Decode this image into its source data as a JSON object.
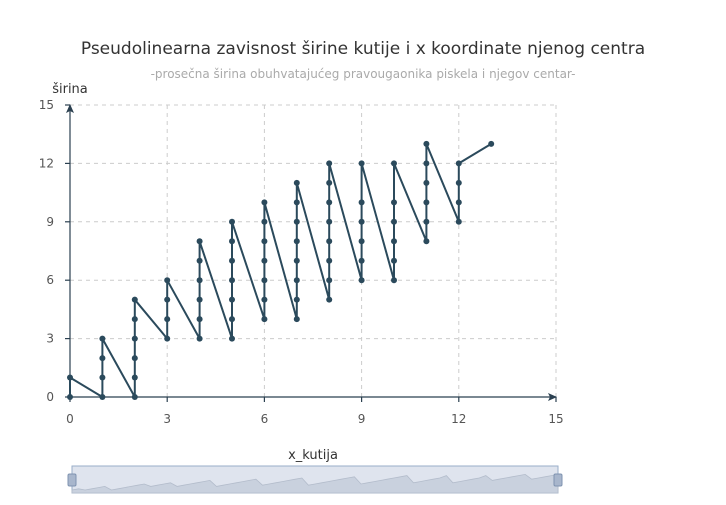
{
  "chart_data": {
    "type": "line",
    "title": "Pseudolinearna zavisnost širine kutije i x koordinate njenog centra",
    "subtitle": "-prosečna širina obuhvatajućeg pravougaonika piskela i njegov centar-",
    "xlabel": "x_kutija",
    "ylabel": "širina",
    "xlim": [
      0,
      15
    ],
    "ylim": [
      0,
      15
    ],
    "xticks": [
      "0",
      "3",
      "6",
      "9",
      "12",
      "15"
    ],
    "yticks": [
      "0",
      "3",
      "6",
      "9",
      "12",
      "15"
    ],
    "grid": true,
    "data_zoom": true,
    "colors": {
      "series": "#2b4a5c",
      "grid": "#cccccc",
      "axis": "#2b4050",
      "zoom_fill": "#dfe4ee",
      "zoom_border": "#9aaec8"
    },
    "series": [
      {
        "points": [
          [
            0,
            0
          ],
          [
            0,
            1
          ],
          [
            1,
            0
          ],
          [
            1,
            1
          ],
          [
            1,
            2
          ],
          [
            1,
            3
          ],
          [
            2,
            0
          ],
          [
            2,
            1
          ],
          [
            2,
            2
          ],
          [
            2,
            3
          ],
          [
            2,
            4
          ],
          [
            2,
            5
          ],
          [
            3,
            3
          ],
          [
            3,
            4
          ],
          [
            3,
            5
          ],
          [
            3,
            6
          ],
          [
            4,
            3
          ],
          [
            4,
            4
          ],
          [
            4,
            5
          ],
          [
            4,
            6
          ],
          [
            4,
            7
          ],
          [
            4,
            8
          ],
          [
            5,
            3
          ],
          [
            5,
            4
          ],
          [
            5,
            5
          ],
          [
            5,
            6
          ],
          [
            5,
            7
          ],
          [
            5,
            8
          ],
          [
            5,
            9
          ],
          [
            6,
            4
          ],
          [
            6,
            5
          ],
          [
            6,
            6
          ],
          [
            6,
            7
          ],
          [
            6,
            8
          ],
          [
            6,
            9
          ],
          [
            6,
            10
          ],
          [
            7,
            4
          ],
          [
            7,
            5
          ],
          [
            7,
            6
          ],
          [
            7,
            7
          ],
          [
            7,
            8
          ],
          [
            7,
            9
          ],
          [
            7,
            10
          ],
          [
            7,
            11
          ],
          [
            8,
            5
          ],
          [
            8,
            6
          ],
          [
            8,
            7
          ],
          [
            8,
            8
          ],
          [
            8,
            9
          ],
          [
            8,
            10
          ],
          [
            8,
            11
          ],
          [
            8,
            12
          ],
          [
            9,
            6
          ],
          [
            9,
            7
          ],
          [
            9,
            8
          ],
          [
            9,
            9
          ],
          [
            9,
            10
          ],
          [
            9,
            12
          ],
          [
            10,
            6
          ],
          [
            10,
            7
          ],
          [
            10,
            8
          ],
          [
            10,
            9
          ],
          [
            10,
            10
          ],
          [
            10,
            12
          ],
          [
            11,
            8
          ],
          [
            11,
            9
          ],
          [
            11,
            10
          ],
          [
            11,
            11
          ],
          [
            11,
            12
          ],
          [
            11,
            13
          ],
          [
            12,
            9
          ],
          [
            12,
            10
          ],
          [
            12,
            11
          ],
          [
            12,
            12
          ],
          [
            13,
            13
          ]
        ]
      }
    ]
  }
}
